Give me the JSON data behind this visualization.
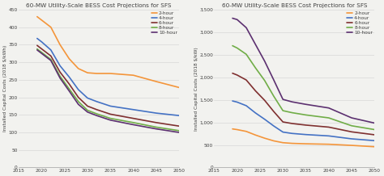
{
  "title": "60-MW Utility-Scale BESS Cost Projections for SFS",
  "years": [
    2019,
    2020,
    2022,
    2024,
    2026,
    2028,
    2030,
    2032,
    2035,
    2040,
    2045,
    2050
  ],
  "left_ylabel": "Installed Capital Costs (2018 $/kWh)",
  "right_ylabel": "Installed Capital Costs (2018 $/kW)",
  "left_ylim": [
    0,
    450
  ],
  "right_ylim": [
    0,
    3500
  ],
  "left_yticks": [
    0,
    50,
    100,
    150,
    200,
    250,
    300,
    350,
    400,
    450
  ],
  "right_yticks": [
    0,
    500,
    1000,
    1500,
    2000,
    2500,
    3000,
    3500
  ],
  "xticks": [
    2015,
    2020,
    2025,
    2030,
    2035,
    2040,
    2045,
    2050
  ],
  "xlim": [
    2015,
    2050
  ],
  "legend_labels": [
    "2-hour",
    "4-hour",
    "6-hour",
    "8-hour",
    "10-hour"
  ],
  "colors": [
    "#f4953a",
    "#4472c4",
    "#7f3030",
    "#70ad47",
    "#5c3070"
  ],
  "left_data": {
    "2-hour": [
      430,
      420,
      400,
      350,
      310,
      282,
      270,
      268,
      268,
      263,
      245,
      228
    ],
    "4-hour": [
      368,
      358,
      335,
      290,
      258,
      222,
      198,
      188,
      175,
      165,
      155,
      148
    ],
    "6-hour": [
      348,
      338,
      318,
      272,
      238,
      200,
      175,
      165,
      152,
      140,
      128,
      118
    ],
    "8-hour": [
      338,
      328,
      308,
      260,
      224,
      188,
      163,
      153,
      140,
      128,
      115,
      105
    ],
    "10-hour": [
      335,
      325,
      305,
      255,
      218,
      180,
      158,
      148,
      135,
      122,
      110,
      100
    ]
  },
  "right_data": {
    "2-hour": [
      855,
      840,
      800,
      720,
      650,
      590,
      550,
      535,
      525,
      515,
      490,
      460
    ],
    "4-hour": [
      1475,
      1450,
      1370,
      1210,
      1070,
      920,
      785,
      755,
      730,
      700,
      635,
      595
    ],
    "6-hour": [
      2090,
      2050,
      1940,
      1700,
      1490,
      1240,
      1010,
      975,
      940,
      895,
      790,
      725
    ],
    "8-hour": [
      2700,
      2650,
      2510,
      2210,
      1930,
      1580,
      1260,
      1215,
      1165,
      1100,
      925,
      840
    ],
    "10-hour": [
      3310,
      3280,
      3100,
      2730,
      2360,
      1940,
      1510,
      1455,
      1400,
      1320,
      1100,
      985
    ]
  },
  "bg_color": "#f2f2ef",
  "plot_bg_color": "#f2f2ef",
  "grid_color": "#d8d8d8",
  "text_color": "#404040",
  "linewidth": 1.2,
  "title_fontsize": 5.2,
  "label_fontsize": 4.2,
  "tick_fontsize": 4.2,
  "legend_fontsize": 4.2
}
